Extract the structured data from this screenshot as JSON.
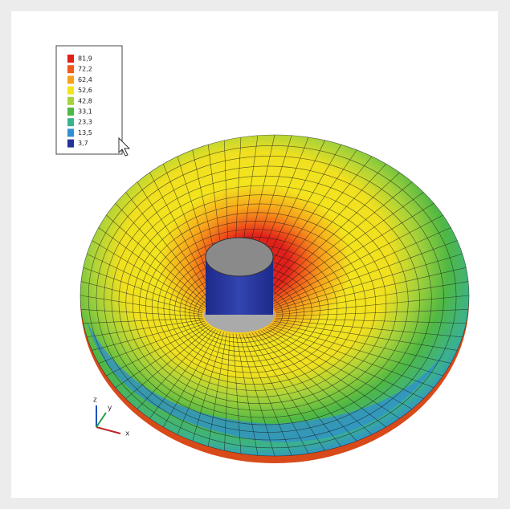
{
  "legend": {
    "entries": [
      {
        "label": "81,9",
        "color": "#e0201a"
      },
      {
        "label": "72,2",
        "color": "#f05a1a"
      },
      {
        "label": "62,4",
        "color": "#f7a21c"
      },
      {
        "label": "52,6",
        "color": "#f3e41e"
      },
      {
        "label": "42,8",
        "color": "#a6d23a"
      },
      {
        "label": "33,1",
        "color": "#4fb844"
      },
      {
        "label": "23,3",
        "color": "#3bb28e"
      },
      {
        "label": "13,5",
        "color": "#2f8fcf"
      },
      {
        "label": "3,7",
        "color": "#26329a"
      }
    ]
  },
  "axes": {
    "z": "z",
    "y": "y",
    "x": "x"
  }
}
